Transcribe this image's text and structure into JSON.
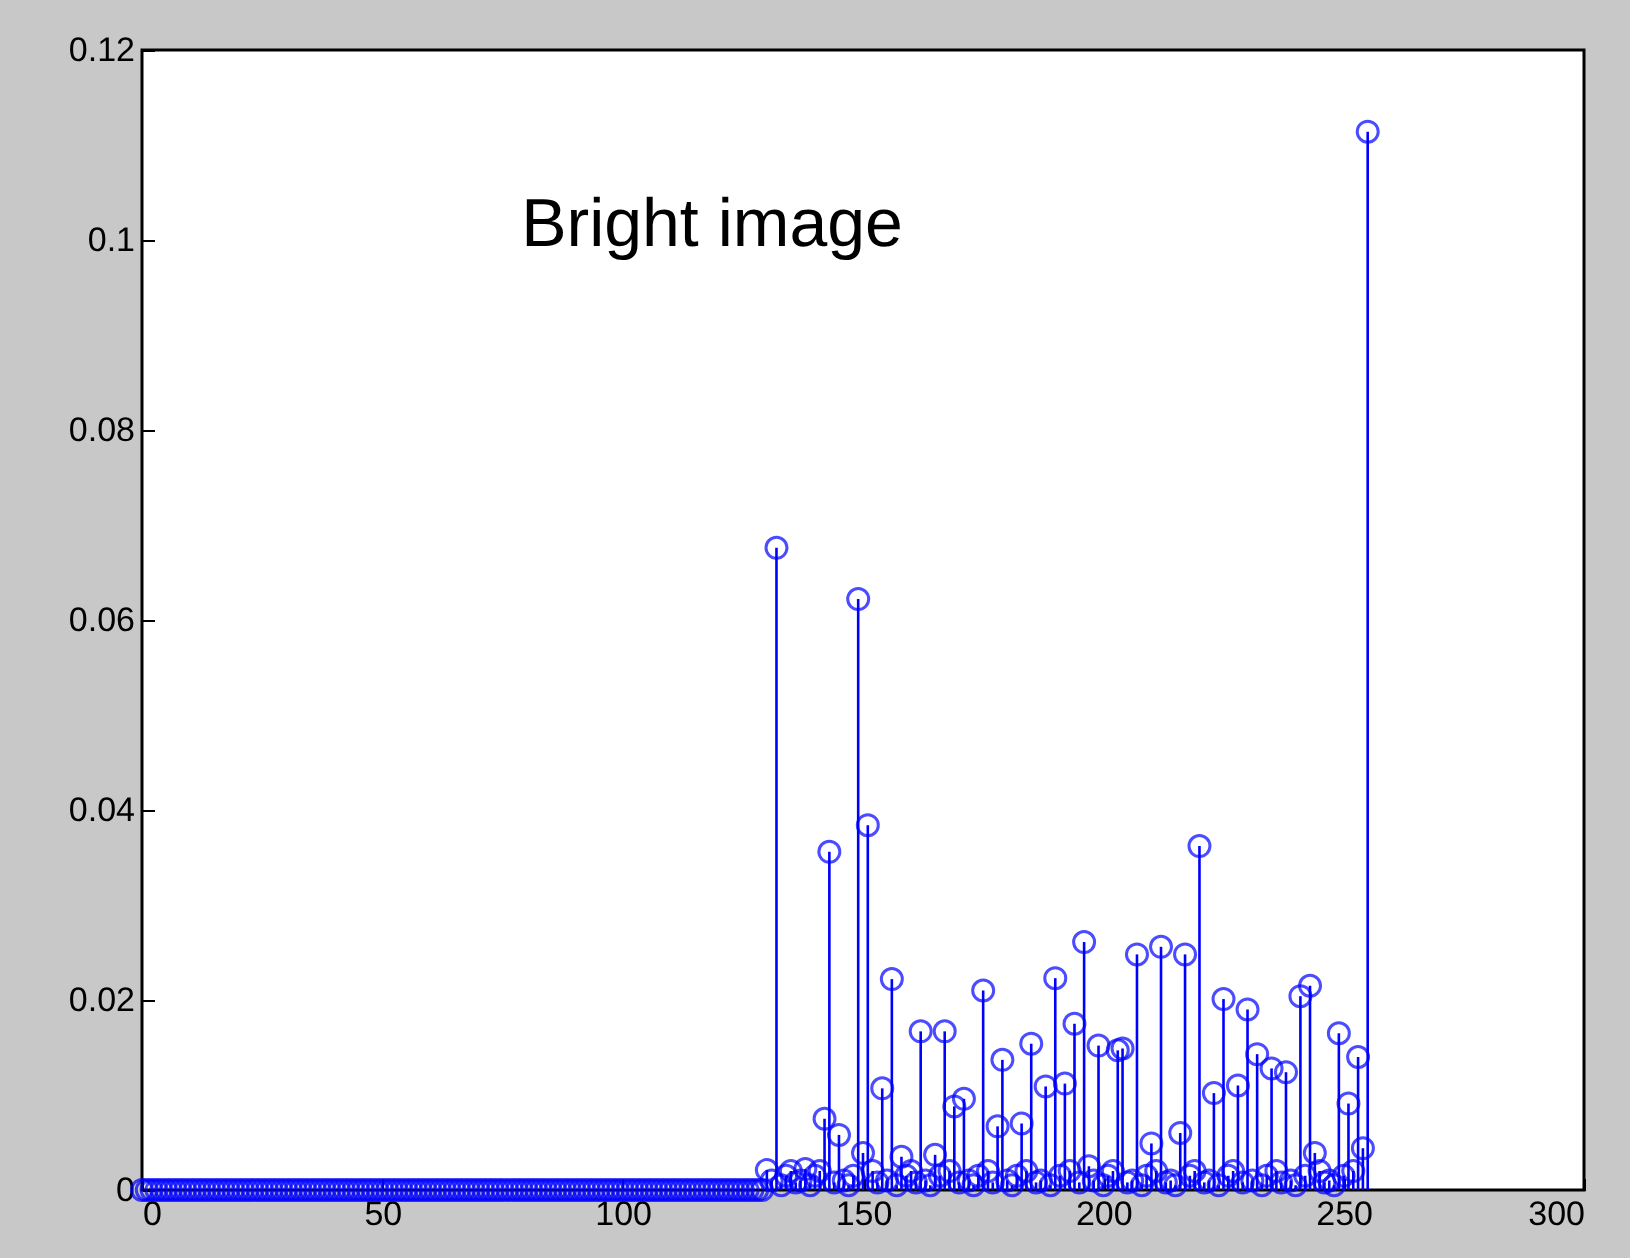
{
  "chart_data": {
    "type": "lollipop",
    "title": "Bright image",
    "color": "#0000ff",
    "marker": "circle",
    "xlim": [
      0,
      300
    ],
    "xticks": [
      0,
      50,
      100,
      150,
      200,
      250,
      300
    ],
    "ylim": [
      0,
      0.12
    ],
    "yticks": [
      0,
      0.02,
      0.04,
      0.06,
      0.08,
      0.1,
      0.12
    ],
    "x": [
      0,
      1,
      2,
      3,
      4,
      5,
      6,
      7,
      8,
      9,
      10,
      11,
      12,
      13,
      14,
      15,
      16,
      17,
      18,
      19,
      20,
      21,
      22,
      23,
      24,
      25,
      26,
      27,
      28,
      29,
      30,
      31,
      32,
      33,
      34,
      35,
      36,
      37,
      38,
      39,
      40,
      41,
      42,
      43,
      44,
      45,
      46,
      47,
      48,
      49,
      50,
      51,
      52,
      53,
      54,
      55,
      56,
      57,
      58,
      59,
      60,
      61,
      62,
      63,
      64,
      65,
      66,
      67,
      68,
      69,
      70,
      71,
      72,
      73,
      74,
      75,
      76,
      77,
      78,
      79,
      80,
      81,
      82,
      83,
      84,
      85,
      86,
      87,
      88,
      89,
      90,
      91,
      92,
      93,
      94,
      95,
      96,
      97,
      98,
      99,
      100,
      101,
      102,
      103,
      104,
      105,
      106,
      107,
      108,
      109,
      110,
      111,
      112,
      113,
      114,
      115,
      116,
      117,
      118,
      119,
      120,
      121,
      122,
      123,
      124,
      125,
      126,
      127,
      128,
      129,
      130,
      131,
      132,
      133,
      134,
      135,
      136,
      137,
      138,
      139,
      140,
      141,
      142,
      143,
      144,
      145,
      146,
      147,
      148,
      149,
      150,
      151,
      152,
      153,
      154,
      155,
      156,
      157,
      158,
      159,
      160,
      161,
      162,
      163,
      164,
      165,
      166,
      167,
      168,
      169,
      170,
      171,
      172,
      173,
      174,
      175,
      176,
      177,
      178,
      179,
      180,
      181,
      182,
      183,
      184,
      185,
      186,
      187,
      188,
      189,
      190,
      191,
      192,
      193,
      194,
      195,
      196,
      197,
      198,
      199,
      200,
      201,
      202,
      203,
      204,
      205,
      206,
      207,
      208,
      209,
      210,
      211,
      212,
      213,
      214,
      215,
      216,
      217,
      218,
      219,
      220,
      221,
      222,
      223,
      224,
      225,
      226,
      227,
      228,
      229,
      230,
      231,
      232,
      233,
      234,
      235,
      236,
      237,
      238,
      239,
      240,
      241,
      242,
      243,
      244,
      245,
      246,
      247,
      248,
      249,
      250,
      251,
      252,
      253,
      254,
      255
    ],
    "values": [
      0,
      0,
      0,
      0,
      0,
      0,
      0,
      0,
      0,
      0,
      0,
      0,
      0,
      0,
      0,
      0,
      0,
      0,
      0,
      0,
      0,
      0,
      0,
      0,
      0,
      0,
      0,
      0,
      0,
      0,
      0,
      0,
      0,
      0,
      0,
      0,
      0,
      0,
      0,
      0,
      0,
      0,
      0,
      0,
      0,
      0,
      0,
      0,
      0,
      0,
      0,
      0,
      0,
      0,
      0,
      0,
      0,
      0,
      0,
      0,
      0,
      0,
      0,
      0,
      0,
      0,
      0,
      0,
      0,
      0,
      0,
      0,
      0,
      0,
      0,
      0,
      0,
      0,
      0,
      0,
      0,
      0,
      0,
      0,
      0,
      0,
      0,
      0,
      0,
      0,
      0,
      0,
      0,
      0,
      0,
      0,
      0,
      0,
      0,
      0,
      0,
      0,
      0,
      0,
      0,
      0,
      0,
      0,
      0,
      0,
      0,
      0,
      0,
      0,
      0,
      0,
      0,
      0,
      0,
      0,
      0,
      0,
      0,
      0,
      0,
      0,
      0,
      0,
      0,
      0,
      0.0021,
      0.001,
      0.0676,
      0.0005,
      0.0015,
      0.002,
      0.0008,
      0.001,
      0.0022,
      0.0005,
      0.0015,
      0.002,
      0.0075,
      0.0356,
      0.0008,
      0.0058,
      0.001,
      0.0005,
      0.0015,
      0.0622,
      0.0039,
      0.0384,
      0.002,
      0.0008,
      0.0107,
      0.001,
      0.0222,
      0.0005,
      0.0035,
      0.0015,
      0.002,
      0.0008,
      0.0167,
      0.001,
      0.0005,
      0.0037,
      0.0015,
      0.0167,
      0.002,
      0.0088,
      0.0008,
      0.0096,
      0.001,
      0.0005,
      0.0015,
      0.021,
      0.002,
      0.0008,
      0.0067,
      0.0137,
      0.001,
      0.0005,
      0.0015,
      0.007,
      0.002,
      0.0154,
      0.0008,
      0.001,
      0.0109,
      0.0005,
      0.0223,
      0.0015,
      0.0112,
      0.002,
      0.0175,
      0.0008,
      0.0261,
      0.0025,
      0.001,
      0.0152,
      0.0005,
      0.0015,
      0.002,
      0.0147,
      0.0149,
      0.0008,
      0.001,
      0.0248,
      0.0005,
      0.0015,
      0.0049,
      0.002,
      0.0256,
      0.0008,
      0.001,
      0.0005,
      0.006,
      0.0248,
      0.0015,
      0.002,
      0.0362,
      0.0008,
      0.001,
      0.0102,
      0.0005,
      0.0201,
      0.0015,
      0.002,
      0.011,
      0.0008,
      0.019,
      0.001,
      0.0143,
      0.0005,
      0.0015,
      0.0128,
      0.002,
      0.0008,
      0.0124,
      0.001,
      0.0005,
      0.0204,
      0.0015,
      0.0215,
      0.0039,
      0.002,
      0.0008,
      0.001,
      0.0005,
      0.0165,
      0.0015,
      0.0091,
      0.002,
      0.014,
      0.0044,
      0.1114
    ]
  }
}
